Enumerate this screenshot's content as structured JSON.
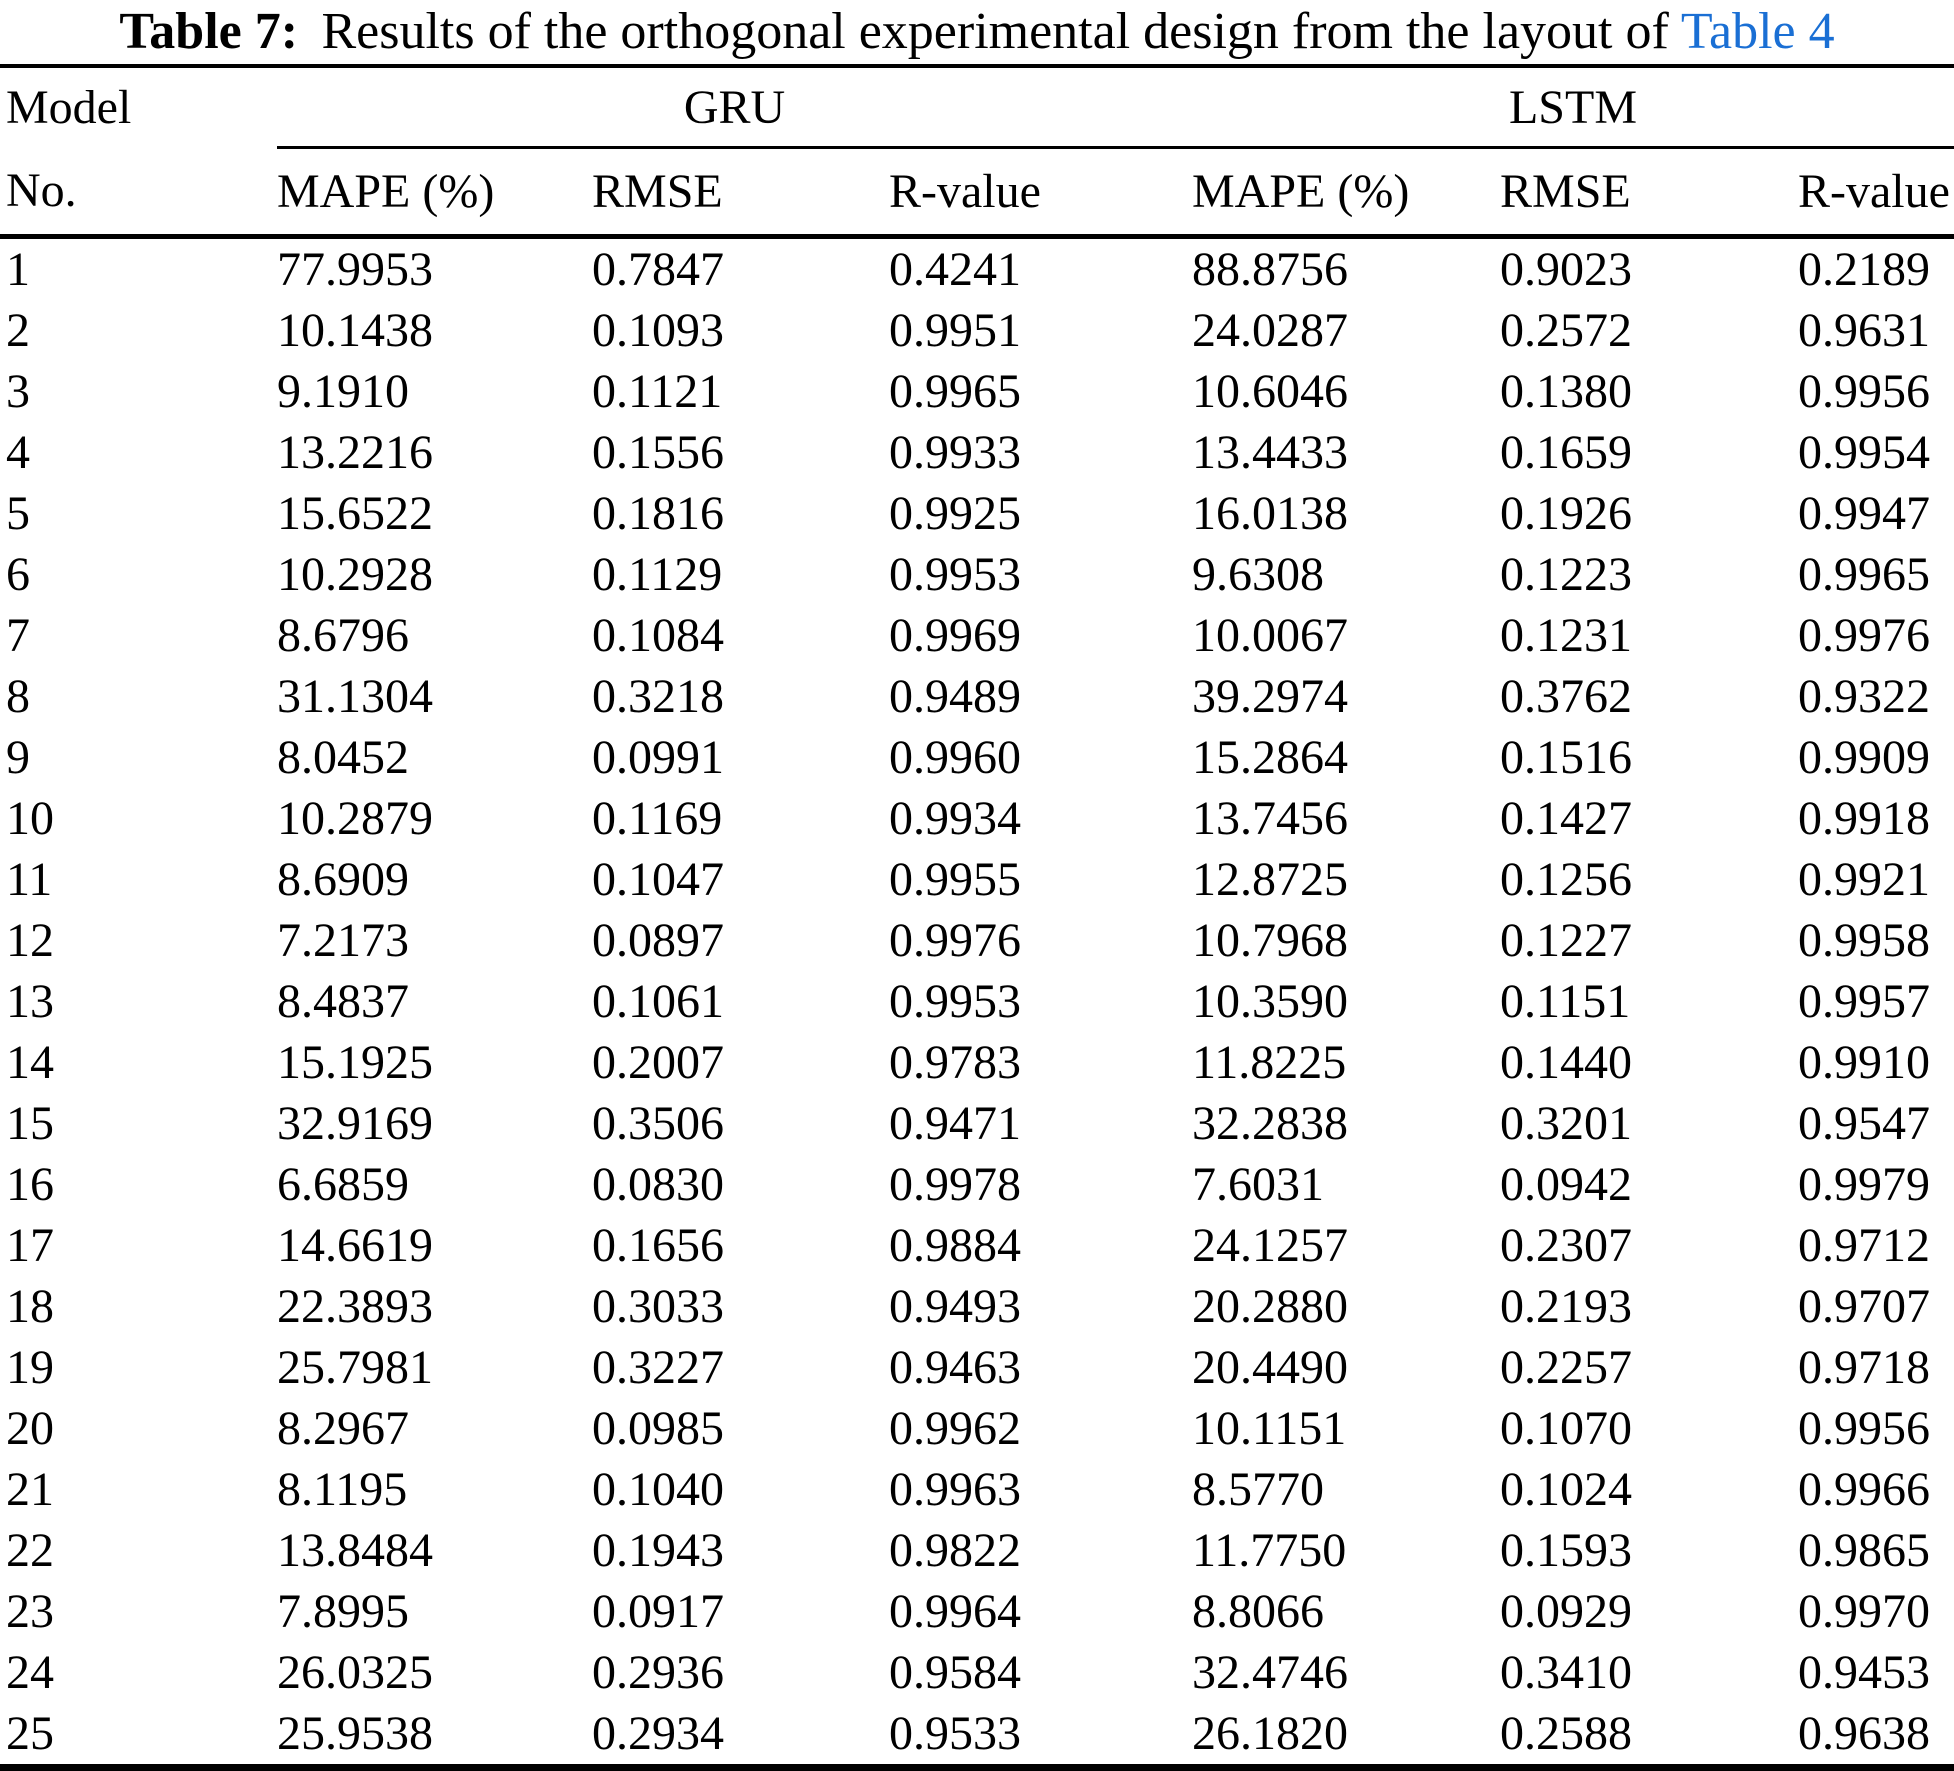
{
  "caption": {
    "label": "Table 7:",
    "text": "Results of the orthogonal experimental design from the layout of",
    "link_text": "Table 4"
  },
  "colors": {
    "link": "#1a6fd4",
    "text": "#000000",
    "background": "#ffffff"
  },
  "table": {
    "model_label": "Model",
    "no_label": "No.",
    "groups": [
      "GRU",
      "LSTM"
    ],
    "sub_headers": [
      "MAPE (%)",
      "RMSE",
      "R-value",
      "MAPE (%)",
      "RMSE",
      "R-value"
    ],
    "rows": [
      [
        "1",
        "77.9953",
        "0.7847",
        "0.4241",
        "88.8756",
        "0.9023",
        "0.2189"
      ],
      [
        "2",
        "10.1438",
        "0.1093",
        "0.9951",
        "24.0287",
        "0.2572",
        "0.9631"
      ],
      [
        "3",
        "9.1910",
        "0.1121",
        "0.9965",
        "10.6046",
        "0.1380",
        "0.9956"
      ],
      [
        "4",
        "13.2216",
        "0.1556",
        "0.9933",
        "13.4433",
        "0.1659",
        "0.9954"
      ],
      [
        "5",
        "15.6522",
        "0.1816",
        "0.9925",
        "16.0138",
        "0.1926",
        "0.9947"
      ],
      [
        "6",
        "10.2928",
        "0.1129",
        "0.9953",
        "9.6308",
        "0.1223",
        "0.9965"
      ],
      [
        "7",
        "8.6796",
        "0.1084",
        "0.9969",
        "10.0067",
        "0.1231",
        "0.9976"
      ],
      [
        "8",
        "31.1304",
        "0.3218",
        "0.9489",
        "39.2974",
        "0.3762",
        "0.9322"
      ],
      [
        "9",
        "8.0452",
        "0.0991",
        "0.9960",
        "15.2864",
        "0.1516",
        "0.9909"
      ],
      [
        "10",
        "10.2879",
        "0.1169",
        "0.9934",
        "13.7456",
        "0.1427",
        "0.9918"
      ],
      [
        "11",
        "8.6909",
        "0.1047",
        "0.9955",
        "12.8725",
        "0.1256",
        "0.9921"
      ],
      [
        "12",
        "7.2173",
        "0.0897",
        "0.9976",
        "10.7968",
        "0.1227",
        "0.9958"
      ],
      [
        "13",
        "8.4837",
        "0.1061",
        "0.9953",
        "10.3590",
        "0.1151",
        "0.9957"
      ],
      [
        "14",
        "15.1925",
        "0.2007",
        "0.9783",
        "11.8225",
        "0.1440",
        "0.9910"
      ],
      [
        "15",
        "32.9169",
        "0.3506",
        "0.9471",
        "32.2838",
        "0.3201",
        "0.9547"
      ],
      [
        "16",
        "6.6859",
        "0.0830",
        "0.9978",
        "7.6031",
        "0.0942",
        "0.9979"
      ],
      [
        "17",
        "14.6619",
        "0.1656",
        "0.9884",
        "24.1257",
        "0.2307",
        "0.9712"
      ],
      [
        "18",
        "22.3893",
        "0.3033",
        "0.9493",
        "20.2880",
        "0.2193",
        "0.9707"
      ],
      [
        "19",
        "25.7981",
        "0.3227",
        "0.9463",
        "20.4490",
        "0.2257",
        "0.9718"
      ],
      [
        "20",
        "8.2967",
        "0.0985",
        "0.9962",
        "10.1151",
        "0.1070",
        "0.9956"
      ],
      [
        "21",
        "8.1195",
        "0.1040",
        "0.9963",
        "8.5770",
        "0.1024",
        "0.9966"
      ],
      [
        "22",
        "13.8484",
        "0.1943",
        "0.9822",
        "11.7750",
        "0.1593",
        "0.9865"
      ],
      [
        "23",
        "7.8995",
        "0.0917",
        "0.9964",
        "8.8066",
        "0.0929",
        "0.9970"
      ],
      [
        "24",
        "26.0325",
        "0.2936",
        "0.9584",
        "32.4746",
        "0.3410",
        "0.9453"
      ],
      [
        "25",
        "25.9538",
        "0.2934",
        "0.9533",
        "26.1820",
        "0.2588",
        "0.9638"
      ]
    ]
  }
}
